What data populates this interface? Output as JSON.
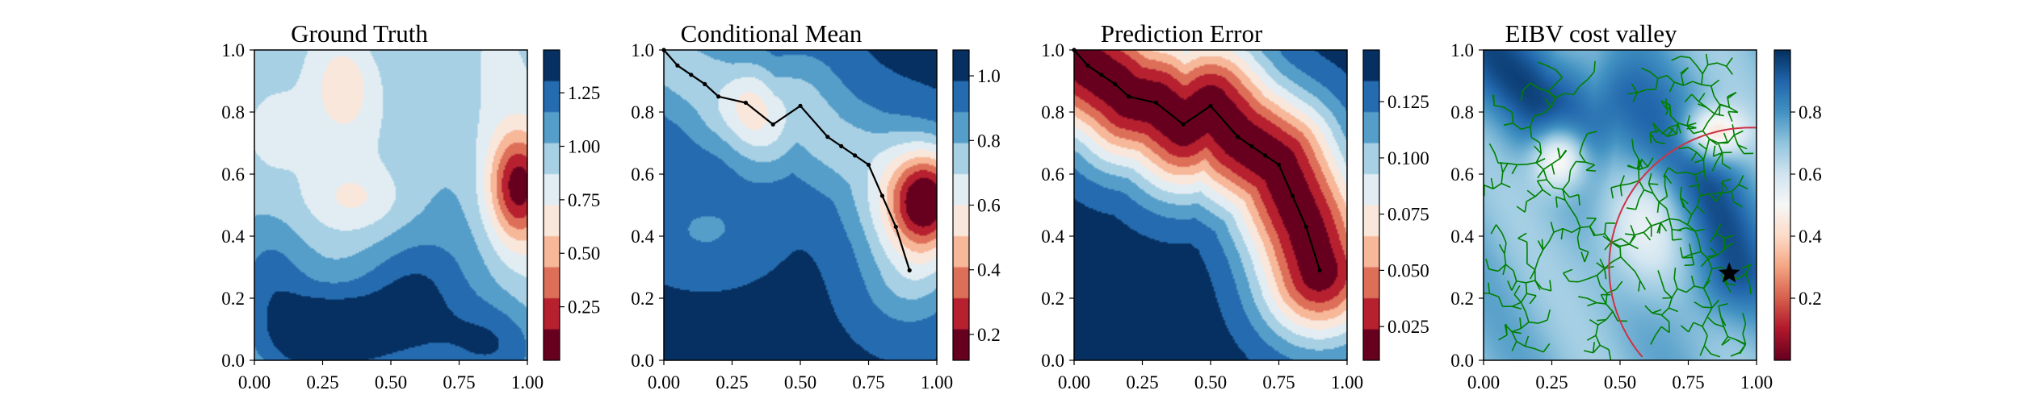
{
  "chart_data": [
    {
      "type": "heatmap",
      "title": "Ground Truth",
      "xlim": [
        0,
        1
      ],
      "ylim": [
        0,
        1
      ],
      "xticks": [
        "0.00",
        "0.25",
        "0.50",
        "0.75",
        "1.00"
      ],
      "yticks": [
        "0.0",
        "0.2",
        "0.4",
        "0.6",
        "0.8",
        "1.0"
      ],
      "colormap": "RdBu",
      "colorbar": {
        "range": [
          0.0,
          1.45
        ],
        "ticks": [
          0.25,
          0.5,
          0.75,
          1.0,
          1.25
        ],
        "tick_labels": [
          "0.25",
          "0.50",
          "0.75",
          "1.00",
          "1.25"
        ]
      },
      "features": [
        {
          "kind": "min",
          "x": 0.97,
          "y": 0.56,
          "value": 0.05
        },
        {
          "kind": "low",
          "x": 0.33,
          "y": 0.9,
          "value": 0.62
        },
        {
          "kind": "low",
          "x": 0.37,
          "y": 0.52,
          "value": 0.72
        },
        {
          "kind": "high",
          "x": 0.25,
          "y": 0.08,
          "value": 1.42
        },
        {
          "kind": "high",
          "x": 0.55,
          "y": 0.1,
          "value": 1.35
        },
        {
          "kind": "high",
          "x": 0.88,
          "y": 0.05,
          "value": 1.32
        },
        {
          "kind": "high",
          "x": 0.05,
          "y": 0.28,
          "value": 1.2
        }
      ]
    },
    {
      "type": "heatmap",
      "title": "Conditional Mean",
      "xlim": [
        0,
        1
      ],
      "ylim": [
        0,
        1
      ],
      "xticks": [
        "0.00",
        "0.25",
        "0.50",
        "0.75",
        "1.00"
      ],
      "yticks": [
        "0.0",
        "0.2",
        "0.4",
        "0.6",
        "0.8",
        "1.0"
      ],
      "colormap": "RdBu",
      "colorbar": {
        "range": [
          0.12,
          1.08
        ],
        "ticks": [
          0.2,
          0.4,
          0.6,
          0.8,
          1.0
        ],
        "tick_labels": [
          "0.2",
          "0.4",
          "0.6",
          "0.8",
          "1.0"
        ]
      },
      "path": {
        "x": [
          0.0,
          0.05,
          0.1,
          0.15,
          0.2,
          0.3,
          0.4,
          0.5,
          0.6,
          0.65,
          0.7,
          0.75,
          0.8,
          0.85,
          0.9
        ],
        "y": [
          1.0,
          0.95,
          0.92,
          0.89,
          0.85,
          0.83,
          0.76,
          0.82,
          0.72,
          0.69,
          0.66,
          0.63,
          0.53,
          0.43,
          0.29
        ]
      }
    },
    {
      "type": "heatmap",
      "title": "Prediction Error",
      "xlim": [
        0,
        1
      ],
      "ylim": [
        0,
        1
      ],
      "xticks": [
        "0.00",
        "0.25",
        "0.50",
        "0.75",
        "1.00"
      ],
      "yticks": [
        "0.0",
        "0.2",
        "0.4",
        "0.6",
        "0.8",
        "1.0"
      ],
      "colormap": "RdBu",
      "colorbar": {
        "range": [
          0.01,
          0.148
        ],
        "ticks": [
          0.025,
          0.05,
          0.075,
          0.1,
          0.125
        ],
        "tick_labels": [
          "0.025",
          "0.050",
          "0.075",
          "0.100",
          "0.125"
        ]
      },
      "path": {
        "x": [
          0.0,
          0.05,
          0.1,
          0.15,
          0.2,
          0.3,
          0.4,
          0.5,
          0.6,
          0.65,
          0.7,
          0.75,
          0.8,
          0.85,
          0.9
        ],
        "y": [
          1.0,
          0.95,
          0.92,
          0.89,
          0.85,
          0.83,
          0.76,
          0.82,
          0.72,
          0.69,
          0.66,
          0.63,
          0.53,
          0.43,
          0.29
        ]
      }
    },
    {
      "type": "heatmap",
      "title": "EIBV cost valley",
      "xlim": [
        0,
        1
      ],
      "ylim": [
        0,
        1
      ],
      "xticks": [
        "0.00",
        "0.25",
        "0.50",
        "0.75",
        "1.00"
      ],
      "yticks": [
        "0.0",
        "0.2",
        "0.4",
        "0.6",
        "0.8",
        "1.0"
      ],
      "colormap": "RdBu",
      "colorbar": {
        "range": [
          0.0,
          1.0
        ],
        "ticks": [
          0.2,
          0.4,
          0.6,
          0.8
        ],
        "tick_labels": [
          "0.2",
          "0.4",
          "0.6",
          "0.8"
        ]
      },
      "current_location": {
        "x": 0.9,
        "y": 0.28,
        "marker": "star"
      },
      "budget_ellipse": {
        "cx": 0.98,
        "cy": 0.3,
        "rx": 0.52,
        "ry": 0.45
      },
      "tree_color": "#008000",
      "ellipse_color": "#cc3344"
    }
  ]
}
